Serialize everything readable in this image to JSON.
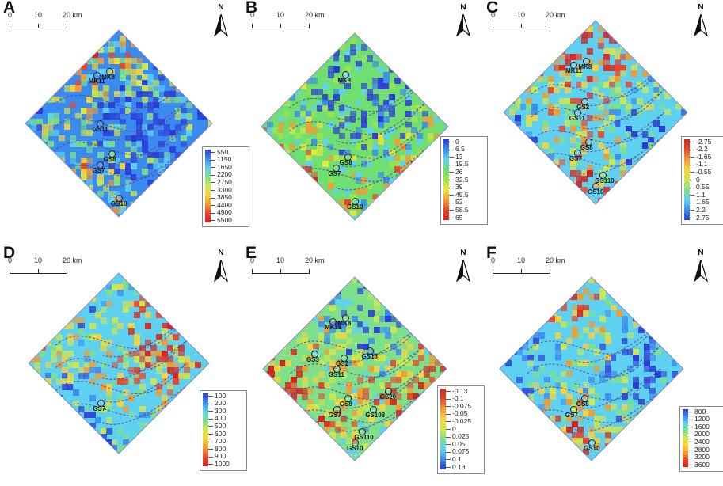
{
  "panels": [
    {
      "id": "A",
      "label": "A",
      "scale": {
        "ticks": [
          "0",
          "10",
          "20 km"
        ]
      },
      "north": "N",
      "legend": {
        "gradient": [
          "#2a3bd8",
          "#3a8bf0",
          "#5fd1f0",
          "#7fe08a",
          "#cfe84a",
          "#f7d33a",
          "#f59a2e",
          "#e8452a",
          "#d8201c"
        ],
        "values": [
          "550",
          "1150",
          "1650",
          "2200",
          "2750",
          "3300",
          "3850",
          "4400",
          "4900",
          "5500"
        ]
      },
      "wells": [
        "MK8",
        "MK11",
        "GS11",
        "GS8",
        "GS7",
        "GS10"
      ]
    },
    {
      "id": "B",
      "label": "B",
      "scale": {
        "ticks": [
          "0",
          "10",
          "20 km"
        ]
      },
      "north": "N",
      "legend": {
        "gradient": [
          "#2a3bd8",
          "#3a8bf0",
          "#5fd1f0",
          "#6fe070",
          "#9fe44a",
          "#e8e83a",
          "#f59a2e",
          "#e8452a",
          "#d8201c"
        ],
        "values": [
          "0",
          "6.5",
          "13",
          "19.5",
          "26",
          "32.5",
          "39",
          "45.5",
          "52",
          "58.5",
          "65"
        ]
      },
      "wells": [
        "MK8",
        "GS8",
        "GS7",
        "GS10"
      ]
    },
    {
      "id": "C",
      "label": "C",
      "scale": {
        "ticks": [
          "0",
          "10",
          "20 km"
        ]
      },
      "north": "N",
      "legend": {
        "gradient": [
          "#d8201c",
          "#e8452a",
          "#f59a2e",
          "#f7d33a",
          "#cfe84a",
          "#7fe08a",
          "#5fd1f0",
          "#3a8bf0",
          "#2a3bd8"
        ],
        "values": [
          "-2.75",
          "-2.2",
          "-1.65",
          "-1.1",
          "-0.55",
          "0",
          "0.55",
          "1.1",
          "1.65",
          "2.2",
          "2.75"
        ]
      },
      "wells": [
        "MK8",
        "MK11",
        "GS2",
        "GS11",
        "GS7",
        "GS8",
        "GS110",
        "GS10"
      ]
    },
    {
      "id": "D",
      "label": "D",
      "scale": {
        "ticks": [
          "0",
          "10",
          "20 km"
        ]
      },
      "north": "N",
      "legend": {
        "gradient": [
          "#2a3bd8",
          "#3a8bf0",
          "#5fd1f0",
          "#7fe08a",
          "#cfe84a",
          "#f7d33a",
          "#f59a2e",
          "#e8452a",
          "#d8201c"
        ],
        "values": [
          "100",
          "200",
          "300",
          "400",
          "500",
          "600",
          "700",
          "800",
          "900",
          "1000"
        ]
      },
      "wells": [
        "GS7"
      ]
    },
    {
      "id": "E",
      "label": "E",
      "scale": {
        "ticks": [
          "0",
          "10",
          "20 km"
        ]
      },
      "north": "N",
      "legend": {
        "gradient": [
          "#d8201c",
          "#e8452a",
          "#f59a2e",
          "#f7d33a",
          "#cfe84a",
          "#7fe08a",
          "#5fd1f0",
          "#3a8bf0",
          "#2a3bd8"
        ],
        "values": [
          "-0.13",
          "-0.1",
          "-0.075",
          "-0.05",
          "-0.025",
          "0",
          "0.025",
          "0.05",
          "0.075",
          "0.1",
          "0.13"
        ]
      },
      "wells": [
        "MK11",
        "MK8",
        "GS18",
        "GS3",
        "GS2",
        "GS11",
        "GS8",
        "GS20",
        "GS7",
        "GS108",
        "GS110",
        "GS10"
      ]
    },
    {
      "id": "F",
      "label": "F",
      "scale": {
        "ticks": [
          "0",
          "10",
          "20 km"
        ]
      },
      "north": "N",
      "legend": {
        "gradient": [
          "#2a3bd8",
          "#3a8bf0",
          "#5fd1f0",
          "#7fe08a",
          "#cfe84a",
          "#f7d33a",
          "#f59a2e",
          "#e8452a",
          "#d8201c"
        ],
        "values": [
          "800",
          "1200",
          "1600",
          "2000",
          "2400",
          "2800",
          "3200",
          "3600"
        ]
      },
      "wells": [
        "GS7",
        "GS8",
        "GS10"
      ]
    }
  ]
}
